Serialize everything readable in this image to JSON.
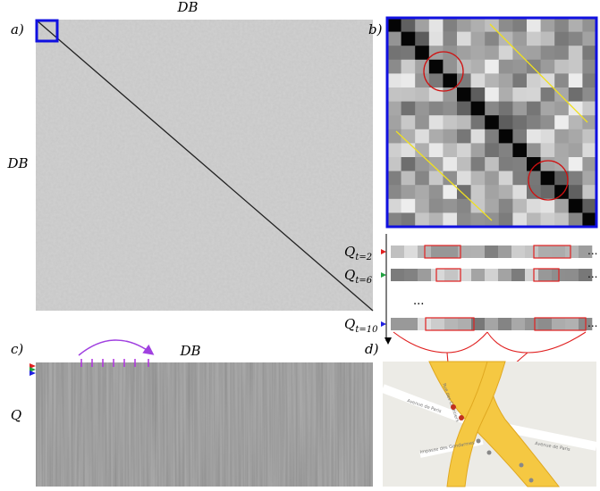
{
  "panels": {
    "a": {
      "label": "a)",
      "x_label": "DB",
      "y_label": "DB"
    },
    "b": {
      "label": "b)",
      "queries": [
        {
          "symbol": "Q",
          "subscript": "t=2"
        },
        {
          "symbol": "Q",
          "subscript": "t=6"
        },
        {
          "symbol": "Q",
          "subscript": "t=10"
        }
      ],
      "row_ellipsis": "...",
      "trailing_ellipsis": "..."
    },
    "c": {
      "label": "c)",
      "x_label": "DB",
      "y_label": "Q"
    },
    "d": {
      "label": "d)",
      "streets": [
        "Avenue de Paris",
        "Rue des Chantiers",
        "Avenue de Paris",
        "Impasse des Gendarmes"
      ]
    }
  }
}
